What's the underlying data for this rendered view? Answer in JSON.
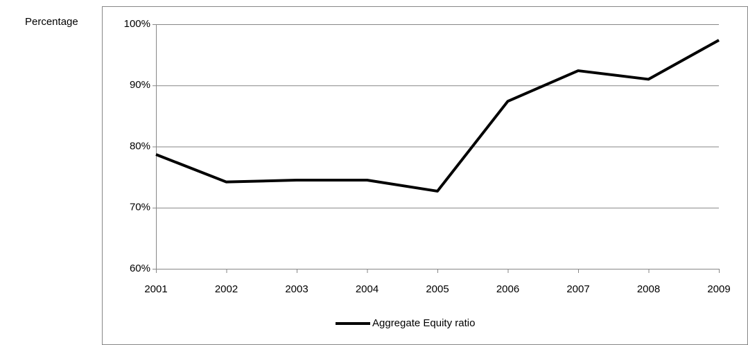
{
  "chart_data": {
    "type": "line",
    "y_label": "Percentage",
    "categories": [
      "2001",
      "2002",
      "2003",
      "2004",
      "2005",
      "2006",
      "2007",
      "2008",
      "2009"
    ],
    "series": [
      {
        "name": "Aggregate Equity ratio",
        "color": "#000000",
        "values": [
          78.7,
          74.2,
          74.5,
          74.5,
          72.7,
          87.4,
          92.4,
          91.0,
          97.4
        ]
      }
    ],
    "ylim": [
      60,
      100
    ],
    "yticks": [
      {
        "value": 60,
        "label": "60%"
      },
      {
        "value": 70,
        "label": "70%"
      },
      {
        "value": 80,
        "label": "80%"
      },
      {
        "value": 90,
        "label": "90%"
      },
      {
        "value": 100,
        "label": "100%"
      }
    ],
    "grid": true,
    "legend": "bottom"
  }
}
